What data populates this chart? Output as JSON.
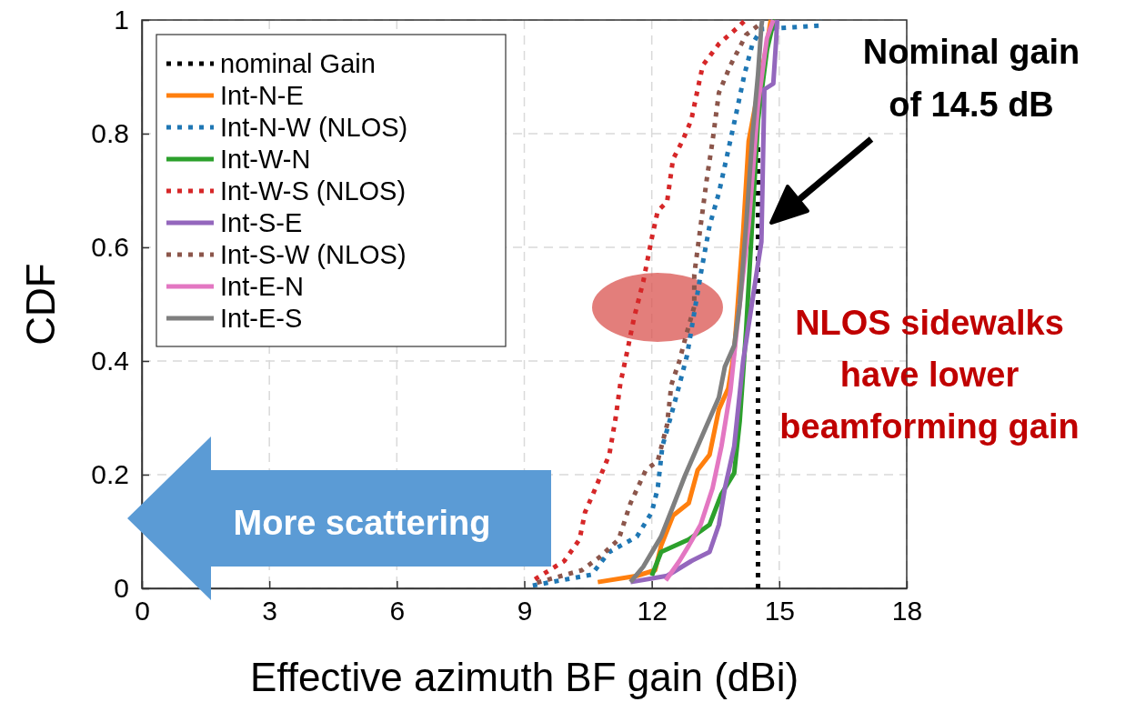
{
  "chart_data": {
    "type": "line",
    "xlabel": "Effective azimuth BF gain (dBi)",
    "ylabel": "CDF",
    "xlim": [
      0,
      18
    ],
    "xticks": [
      0,
      3,
      6,
      9,
      12,
      15,
      18
    ],
    "ylim": [
      0,
      1
    ],
    "yticks": [
      0,
      0.2,
      0.4,
      0.6,
      0.8,
      1
    ],
    "grid": true,
    "legend": "top left",
    "marker": "none",
    "series": [
      {
        "name": "nominal Gain",
        "color": "#000000",
        "line_style": "dotted",
        "x": [
          14.5,
          14.5
        ],
        "values": [
          0,
          0.78
        ]
      },
      {
        "name": "Int-N-E",
        "color": "#ff7f0e",
        "line_style": "solid",
        "x": [
          10.73,
          11.65,
          12.08,
          12.22,
          12.5,
          12.87,
          13.08,
          13.36,
          13.58,
          13.8,
          13.94,
          14.15,
          14.28,
          14.71,
          14.8
        ],
        "values": [
          0.011,
          0.022,
          0.032,
          0.075,
          0.128,
          0.15,
          0.208,
          0.235,
          0.315,
          0.352,
          0.416,
          0.627,
          0.787,
          0.958,
          1
        ]
      },
      {
        "name": "Int-N-W (NLOS)",
        "color": "#1f77b4",
        "line_style": "dotted",
        "x": [
          9.2,
          10.58,
          11.0,
          11.65,
          12.0,
          12.14,
          12.25,
          12.44,
          12.65,
          12.83,
          12.93,
          13.15,
          13.36,
          13.58,
          13.8,
          14.0,
          14.18,
          14.37,
          14.58,
          15.93,
          16.0
        ],
        "values": [
          0.005,
          0.024,
          0.064,
          0.091,
          0.134,
          0.176,
          0.25,
          0.3,
          0.358,
          0.41,
          0.454,
          0.552,
          0.638,
          0.696,
          0.771,
          0.84,
          0.904,
          0.958,
          0.984,
          0.99,
          1
        ]
      },
      {
        "name": "Int-W-N",
        "color": "#2ca02c",
        "line_style": "solid",
        "x": [
          12.0,
          12.22,
          12.87,
          13.36,
          13.64,
          13.94,
          14.07,
          14.22,
          14.5,
          14.71,
          14.86,
          14.9
        ],
        "values": [
          0.022,
          0.064,
          0.086,
          0.112,
          0.166,
          0.203,
          0.294,
          0.454,
          0.824,
          0.947,
          0.995,
          1
        ]
      },
      {
        "name": "Int-W-S (NLOS)",
        "color": "#d62728",
        "line_style": "dotted",
        "x": [
          9.25,
          9.94,
          10.3,
          10.43,
          10.64,
          11.0,
          11.15,
          11.26,
          11.43,
          11.58,
          11.8,
          12.0,
          12.14,
          12.36,
          12.5,
          12.72,
          12.93,
          13.08,
          13.2,
          13.58,
          14.07,
          14.2
        ],
        "values": [
          0.016,
          0.048,
          0.086,
          0.134,
          0.17,
          0.235,
          0.3,
          0.36,
          0.42,
          0.475,
          0.54,
          0.616,
          0.664,
          0.68,
          0.755,
          0.787,
          0.824,
          0.878,
          0.92,
          0.958,
          0.99,
          1
        ]
      },
      {
        "name": "Int-S-E",
        "color": "#9467bd",
        "line_style": "solid",
        "x": [
          11.5,
          12.36,
          12.93,
          13.36,
          13.58,
          13.72,
          13.94,
          14.15,
          14.58,
          14.65,
          14.86,
          14.93,
          14.95
        ],
        "values": [
          0.011,
          0.022,
          0.048,
          0.064,
          0.112,
          0.176,
          0.25,
          0.4,
          0.61,
          0.878,
          0.888,
          0.968,
          1
        ]
      },
      {
        "name": "Int-S-W (NLOS)",
        "color": "#8c564b",
        "line_style": "dotted",
        "x": [
          9.3,
          10.36,
          10.79,
          11.22,
          11.5,
          11.86,
          12.14,
          12.36,
          12.46,
          12.65,
          12.8,
          13.0,
          13.0,
          13.15,
          13.3,
          13.43,
          13.58,
          13.85,
          14.22,
          14.5,
          14.55
        ],
        "values": [
          0.01,
          0.032,
          0.056,
          0.086,
          0.15,
          0.208,
          0.224,
          0.288,
          0.358,
          0.4,
          0.443,
          0.496,
          0.552,
          0.638,
          0.723,
          0.787,
          0.872,
          0.92,
          0.974,
          0.99,
          1
        ]
      },
      {
        "name": "Int-E-N",
        "color": "#e377c2",
        "line_style": "solid",
        "x": [
          12.33,
          12.65,
          12.87,
          13.15,
          13.43,
          13.64,
          13.85,
          14.0,
          14.28,
          14.5,
          14.71,
          14.86
        ],
        "values": [
          0.014,
          0.048,
          0.075,
          0.112,
          0.176,
          0.25,
          0.347,
          0.454,
          0.638,
          0.851,
          0.968,
          1
        ]
      },
      {
        "name": "Int-E-S",
        "color": "#7f7f7f",
        "line_style": "solid",
        "x": [
          11.5,
          11.8,
          12.22,
          12.5,
          12.78,
          13.08,
          13.3,
          13.58,
          13.72,
          13.94,
          14.07,
          14.22,
          14.37,
          14.5,
          14.58,
          14.6
        ],
        "values": [
          0.011,
          0.038,
          0.091,
          0.144,
          0.198,
          0.25,
          0.288,
          0.336,
          0.39,
          0.427,
          0.5,
          0.638,
          0.798,
          0.904,
          0.99,
          1
        ]
      }
    ],
    "annotations": [
      "Nominal gain\nof 14.5 dB",
      "NLOS sidewalks\nhave lower\nbeamforming gain",
      "More scattering"
    ]
  }
}
